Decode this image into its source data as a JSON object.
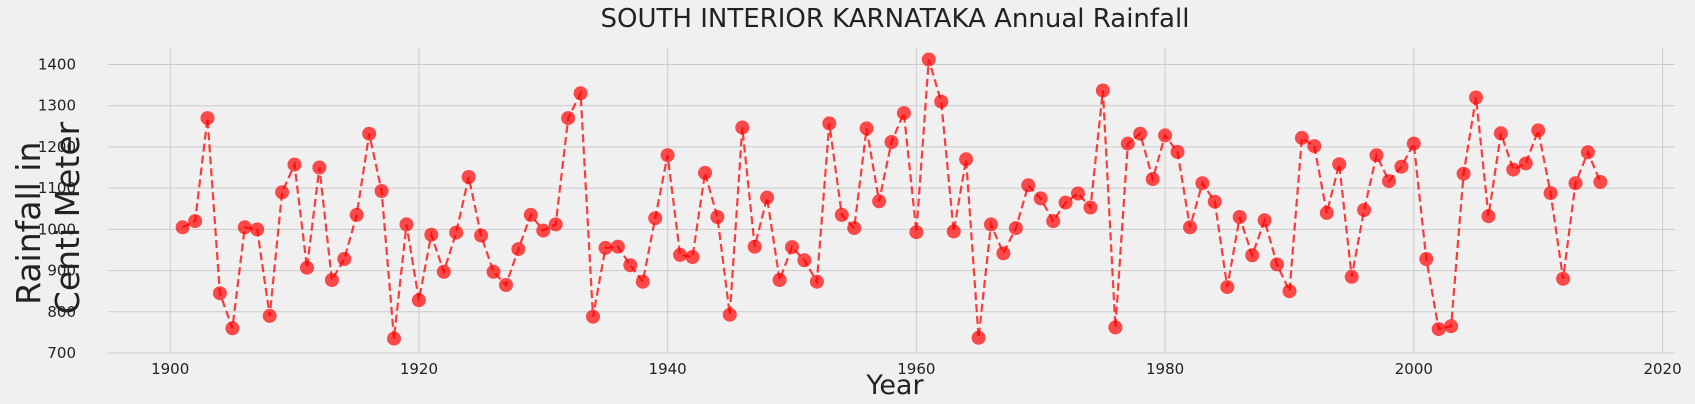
{
  "chart_data": {
    "type": "line",
    "title": "SOUTH INTERIOR KARNATAKA Annual Rainfall",
    "xlabel": "Year",
    "ylabel_lines": [
      "Rainfall in",
      "Centi Meter"
    ],
    "xlim": [
      1895,
      2021
    ],
    "ylim": [
      700,
      1440
    ],
    "xticks": [
      1900,
      1920,
      1940,
      1960,
      1980,
      2000,
      2020
    ],
    "yticks": [
      700,
      800,
      900,
      1000,
      1100,
      1200,
      1300,
      1400
    ],
    "grid": true,
    "line_style": "dashed",
    "marker": "circle",
    "color": "#ff0000",
    "x": [
      1901,
      1902,
      1903,
      1904,
      1905,
      1906,
      1907,
      1908,
      1909,
      1910,
      1911,
      1912,
      1913,
      1914,
      1915,
      1916,
      1917,
      1918,
      1919,
      1920,
      1921,
      1922,
      1923,
      1924,
      1925,
      1926,
      1927,
      1928,
      1929,
      1930,
      1931,
      1932,
      1933,
      1934,
      1935,
      1936,
      1937,
      1938,
      1939,
      1940,
      1941,
      1942,
      1943,
      1944,
      1945,
      1946,
      1947,
      1948,
      1949,
      1950,
      1951,
      1952,
      1953,
      1954,
      1955,
      1956,
      1957,
      1958,
      1959,
      1960,
      1961,
      1962,
      1963,
      1964,
      1965,
      1966,
      1967,
      1968,
      1969,
      1970,
      1971,
      1972,
      1973,
      1974,
      1975,
      1976,
      1977,
      1978,
      1979,
      1980,
      1981,
      1982,
      1983,
      1984,
      1985,
      1986,
      1987,
      1988,
      1989,
      1990,
      1991,
      1992,
      1993,
      1994,
      1995,
      1996,
      1997,
      1998,
      1999,
      2000,
      2001,
      2002,
      2003,
      2004,
      2005,
      2006,
      2007,
      2008,
      2009,
      2010,
      2011,
      2012,
      2013,
      2014,
      2015
    ],
    "y": [
      1005,
      1020,
      1270,
      845,
      760,
      1005,
      1000,
      790,
      1090,
      1157,
      907,
      1150,
      877,
      928,
      1035,
      1232,
      1093,
      735,
      1012,
      828,
      987,
      897,
      992,
      1127,
      985,
      897,
      865,
      952,
      1035,
      997,
      1012,
      1270,
      1330,
      788,
      955,
      958,
      913,
      873,
      1027,
      1180,
      938,
      933,
      1137,
      1030,
      793,
      1247,
      958,
      1077,
      877,
      957,
      925,
      873,
      1257,
      1035,
      1003,
      1245,
      1068,
      1212,
      1282,
      993,
      1412,
      1310,
      995,
      1170,
      737,
      1012,
      942,
      1003,
      1107,
      1075,
      1020,
      1065,
      1087,
      1053,
      1337,
      762,
      1208,
      1232,
      1122,
      1228,
      1188,
      1005,
      1112,
      1067,
      860,
      1030,
      937,
      1022,
      915,
      850,
      1222,
      1202,
      1040,
      1158,
      885,
      1047,
      1180,
      1117,
      1152,
      1208,
      928,
      758,
      765,
      1135,
      1320,
      1032,
      1233,
      1145,
      1160,
      1240,
      1088,
      880,
      1112,
      1187,
      1115
    ]
  }
}
